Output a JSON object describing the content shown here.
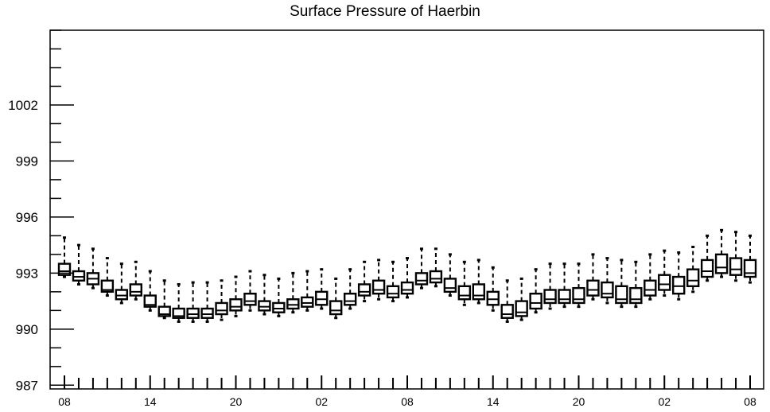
{
  "chart_data": {
    "type": "boxplot",
    "title": "Surface Pressure of Haerbin",
    "xlabel": "",
    "ylabel": "",
    "ylim": [
      986.8,
      1006.0
    ],
    "y_ticks": [
      "987",
      "990",
      "993",
      "996",
      "999",
      "1002"
    ],
    "x_tick_labels": [
      "08",
      "14",
      "20",
      "02",
      "08",
      "14",
      "20",
      "02",
      "08"
    ],
    "x_tick_label_index": [
      0,
      6,
      12,
      18,
      24,
      30,
      36,
      42,
      48
    ],
    "grid": false,
    "legend": "none",
    "series": [
      {
        "whisker_low": [
          992.8,
          992.4,
          992.2,
          991.8,
          991.4,
          991.6,
          991.0,
          990.6,
          990.4,
          990.4,
          990.4,
          990.5,
          990.7,
          991.0,
          990.8,
          990.7,
          990.9,
          991.0,
          991.1,
          990.6,
          991.1,
          991.5,
          991.6,
          991.5,
          991.7,
          992.2,
          992.3,
          991.8,
          991.3,
          991.4,
          991.0,
          990.4,
          990.5,
          990.9,
          991.1,
          991.2,
          991.2,
          991.6,
          991.4,
          991.2,
          991.2,
          991.6,
          991.8,
          991.6,
          992.0,
          992.6,
          992.8,
          992.6,
          992.5
        ],
        "q1": [
          992.9,
          992.6,
          992.4,
          992.0,
          991.6,
          991.8,
          991.2,
          990.7,
          990.6,
          990.6,
          990.6,
          990.8,
          991.0,
          991.3,
          991.0,
          990.9,
          991.1,
          991.2,
          991.3,
          990.8,
          991.3,
          991.8,
          991.9,
          991.7,
          991.9,
          992.4,
          992.5,
          992.0,
          991.6,
          991.6,
          991.3,
          990.6,
          990.7,
          991.1,
          991.4,
          991.4,
          991.4,
          991.8,
          991.7,
          991.4,
          991.4,
          991.8,
          992.1,
          991.9,
          992.3,
          992.8,
          993.0,
          992.9,
          992.8
        ],
        "median": [
          993.1,
          992.8,
          992.7,
          992.1,
          991.8,
          992.0,
          991.3,
          990.8,
          990.7,
          990.8,
          990.8,
          991.0,
          991.2,
          991.5,
          991.2,
          991.1,
          991.3,
          991.4,
          991.6,
          991.0,
          991.5,
          992.0,
          992.1,
          991.9,
          992.1,
          992.6,
          992.7,
          992.2,
          991.8,
          991.8,
          991.6,
          990.8,
          990.9,
          991.4,
          991.6,
          991.6,
          991.6,
          992.1,
          991.9,
          991.6,
          991.6,
          992.1,
          992.4,
          992.3,
          992.6,
          993.1,
          993.3,
          993.2,
          993.0
        ],
        "q3": [
          993.5,
          993.1,
          993.0,
          992.6,
          992.1,
          992.4,
          991.8,
          991.2,
          991.1,
          991.1,
          991.1,
          991.4,
          991.6,
          991.9,
          991.5,
          991.4,
          991.6,
          991.7,
          992.0,
          991.5,
          991.9,
          992.4,
          992.6,
          992.3,
          992.5,
          993.0,
          993.1,
          992.7,
          992.3,
          992.4,
          992.0,
          991.3,
          991.5,
          991.9,
          992.1,
          992.1,
          992.2,
          992.6,
          992.5,
          992.3,
          992.2,
          992.6,
          992.9,
          992.8,
          993.2,
          993.7,
          994.0,
          993.8,
          993.7
        ],
        "whisker_high": [
          994.9,
          994.5,
          994.3,
          993.8,
          993.5,
          993.6,
          993.1,
          992.6,
          992.4,
          992.5,
          992.5,
          992.6,
          992.8,
          993.1,
          992.9,
          992.7,
          993.0,
          993.1,
          993.2,
          992.7,
          993.2,
          993.6,
          993.7,
          993.6,
          993.8,
          994.3,
          994.3,
          994.0,
          993.6,
          993.7,
          993.3,
          992.6,
          992.7,
          993.2,
          993.5,
          993.5,
          993.5,
          994.0,
          993.8,
          993.7,
          993.6,
          994.0,
          994.2,
          994.1,
          994.4,
          995.0,
          995.3,
          995.2,
          995.0
        ]
      }
    ]
  }
}
